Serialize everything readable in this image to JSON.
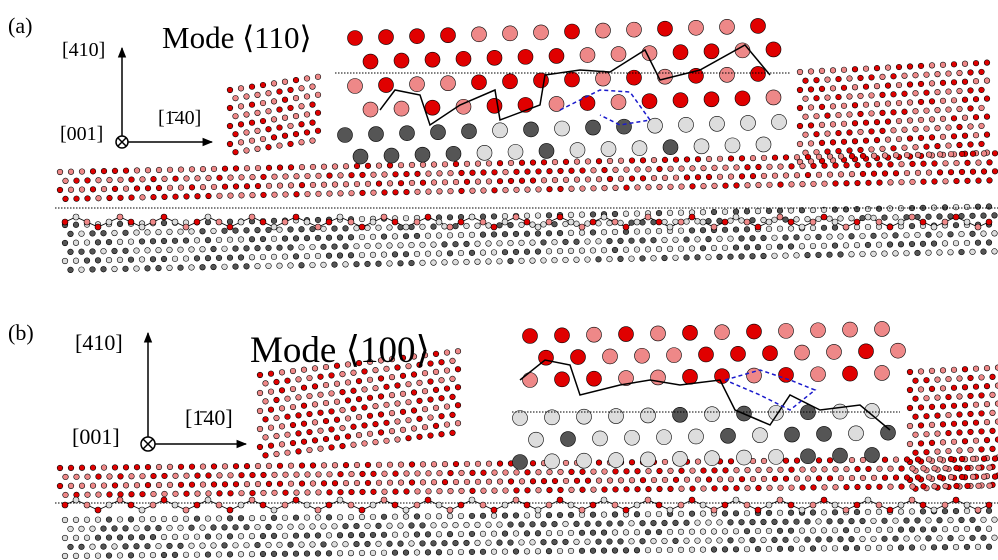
{
  "panels": [
    {
      "label": "(a)",
      "title": "Mode ⟨110⟩",
      "axes": {
        "up": "[410]",
        "right": "[1̄40]",
        "out": "[001]"
      }
    },
    {
      "label": "(b)",
      "title": "Mode ⟨100⟩",
      "axes": {
        "up": "[410]",
        "right": "[1̄40]",
        "out": "[001]"
      }
    }
  ]
}
